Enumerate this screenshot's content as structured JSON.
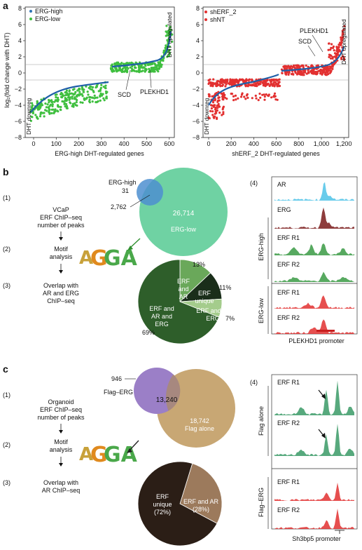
{
  "panel_a": {
    "letter": "a",
    "ylabel": "log₂(fold change with DHT)",
    "left": {
      "legend": [
        "ERG-high",
        "ERG-low"
      ],
      "colors": {
        "high": "#2e75b6",
        "low": "#3fbf3f"
      },
      "xticks": [
        "0",
        "100",
        "200",
        "300",
        "400",
        "500",
        "600"
      ],
      "yticks": [
        "8",
        "6",
        "4",
        "2",
        "0",
        "−2",
        "−4",
        "−6",
        "−8"
      ],
      "xlabel": "ERG-high DHT-regulated genes",
      "down_label": "DHT downreg",
      "up_label": "DHT upregulated",
      "annotations": [
        "SCD",
        "PLEKHD1"
      ]
    },
    "right": {
      "legend": [
        "shERF_2",
        "shNT"
      ],
      "colors": {
        "sh": "#e23030",
        "nt": "#2e75b6"
      },
      "xticks": [
        "0",
        "200",
        "400",
        "600",
        "800",
        "1,000",
        "1,200"
      ],
      "yticks": [
        "8",
        "6",
        "4",
        "2",
        "0",
        "−2",
        "−4",
        "−6",
        "−8"
      ],
      "xlabel": "shERF_2 DHT-regulated genes",
      "down_label": "DHT downreg",
      "up_label": "DHT upregulated",
      "annotations": [
        "PLEKHD1",
        "SCD"
      ]
    }
  },
  "panel_b": {
    "letter": "b",
    "steps": [
      {
        "num": "(1)",
        "lines": [
          "VCaP",
          "ERF ChIP–seq",
          "number of peaks"
        ]
      },
      {
        "num": "(2)",
        "lines": [
          "Motif",
          "analysis"
        ]
      },
      {
        "num": "(3)",
        "lines": [
          "Overlap with",
          "AR and ERG",
          "ChIP–seq"
        ]
      }
    ],
    "venn": {
      "label_a": "ERG-high",
      "a_only": "31",
      "overlap": "2,762",
      "b_only": "26,714",
      "label_b": "ERG-low"
    },
    "pie": [
      {
        "label": "ERF and AR and ERG",
        "percent": 69,
        "text": "69%"
      },
      {
        "label": "ERF and AR",
        "percent": 13,
        "text": "13%"
      },
      {
        "label": "ERF unique",
        "percent": 11,
        "text": "11%"
      },
      {
        "label": "ERF and ERG",
        "percent": 7,
        "text": "7%"
      }
    ],
    "tracks_num": "(4)",
    "tracks": [
      "AR",
      "ERG",
      "ERF R1",
      "ERF R2",
      "ERF R1",
      "ERF R2"
    ],
    "group_labels": [
      "ERG-high",
      "ERG-low"
    ],
    "promoter": "PLEKHD1 promoter"
  },
  "panel_c": {
    "letter": "c",
    "steps": [
      {
        "num": "(1)",
        "lines": [
          "Organoid",
          "ERF ChIP–seq",
          "number of peaks"
        ]
      },
      {
        "num": "(2)",
        "lines": [
          "Motif",
          "analysis"
        ]
      },
      {
        "num": "(3)",
        "lines": [
          "Overlap with",
          "AR ChIP–seq"
        ]
      }
    ],
    "venn": {
      "a_only": "946",
      "label_a": "Flag–ERG",
      "overlap": "13,240",
      "b_only": "18,742",
      "label_b": "Flag alone"
    },
    "pie": [
      {
        "label": "ERF unique",
        "percent": 72,
        "text": "(72%)"
      },
      {
        "label": "ERF and AR",
        "percent": 28,
        "text": "(28%)"
      }
    ],
    "tracks_num": "(4)",
    "tracks": [
      "ERF R1",
      "ERF R2",
      "ERF R1",
      "ERF R2"
    ],
    "group_labels": [
      "Flag alone",
      "Flag–ERG"
    ],
    "promoter": "Sh3bp5 promoter"
  }
}
